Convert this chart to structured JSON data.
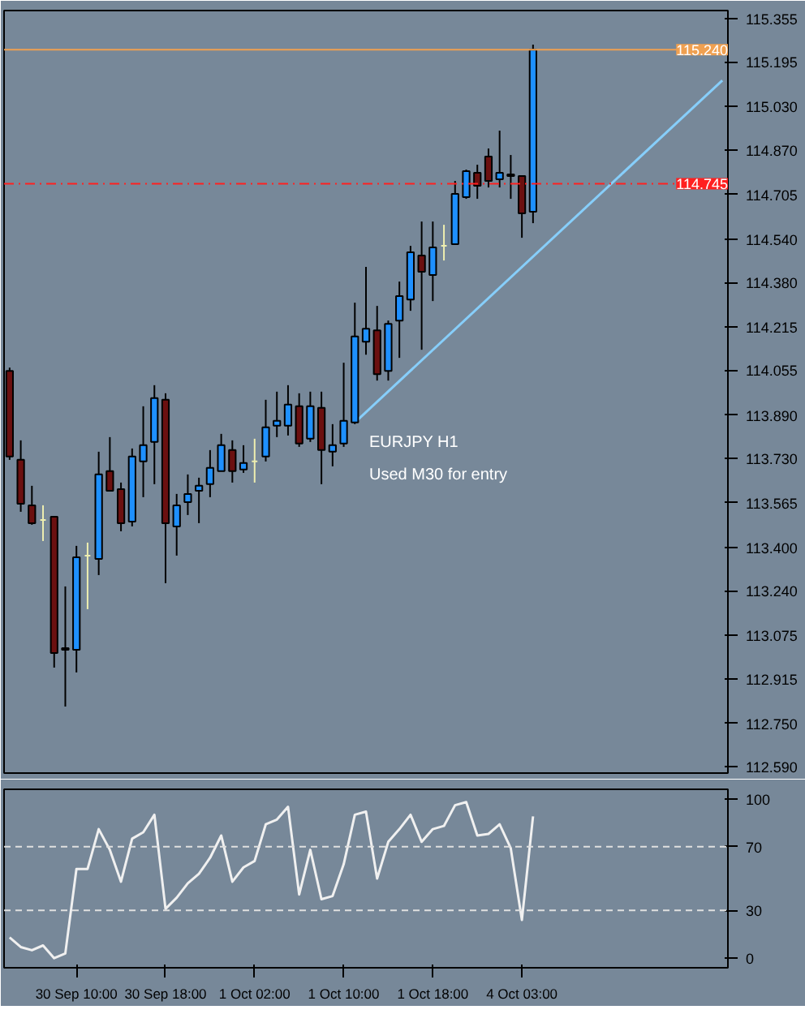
{
  "chart_data": [
    {
      "type": "candlestick",
      "tick_labels": "y",
      "grid": false,
      "categories": [
        null,
        null,
        null,
        null,
        null,
        null,
        null,
        null,
        null,
        null,
        null,
        null,
        null,
        null,
        null,
        null,
        null,
        null,
        null,
        null,
        null,
        null,
        null,
        null,
        null,
        null,
        null,
        null,
        null,
        null,
        null,
        null,
        null,
        null,
        null,
        null,
        null,
        null,
        null,
        null,
        null,
        null,
        null,
        null,
        null,
        null,
        null,
        null,
        null,
        null,
        null,
        null,
        null,
        null,
        null,
        null,
        null,
        null,
        null,
        null,
        null,
        null,
        null,
        null,
        null
      ],
      "ohlc": [
        [
          114.053,
          114.065,
          113.724,
          113.736
        ],
        [
          113.724,
          113.796,
          113.532,
          113.562
        ],
        [
          113.556,
          113.628,
          113.484,
          113.49
        ],
        [
          113.502,
          113.556,
          113.424,
          113.502
        ],
        [
          113.514,
          113.514,
          112.956,
          113.01
        ],
        [
          113.022,
          113.256,
          112.812,
          113.028
        ],
        [
          113.022,
          113.406,
          112.938,
          113.364
        ],
        [
          113.37,
          113.418,
          113.172,
          113.37
        ],
        [
          113.358,
          113.754,
          113.298,
          113.67
        ],
        [
          113.682,
          113.808,
          113.61,
          113.61
        ],
        [
          113.616,
          113.64,
          113.46,
          113.49
        ],
        [
          113.496,
          113.766,
          113.478,
          113.736
        ],
        [
          113.718,
          113.922,
          113.586,
          113.778
        ],
        [
          113.79,
          114.0,
          113.634,
          113.952
        ],
        [
          113.946,
          113.97,
          113.268,
          113.49
        ],
        [
          113.478,
          113.598,
          113.37,
          113.556
        ],
        [
          113.568,
          113.67,
          113.52,
          113.598
        ],
        [
          113.61,
          113.658,
          113.49,
          113.628
        ],
        [
          113.634,
          113.76,
          113.586,
          113.694
        ],
        [
          113.682,
          113.82,
          113.682,
          113.778
        ],
        [
          113.76,
          113.796,
          113.64,
          113.682
        ],
        [
          113.688,
          113.778,
          113.676,
          113.712
        ],
        [
          113.718,
          113.802,
          113.64,
          113.718
        ],
        [
          113.736,
          113.946,
          113.718,
          113.844
        ],
        [
          113.85,
          113.976,
          113.808,
          113.868
        ],
        [
          113.85,
          114.0,
          113.814,
          113.928
        ],
        [
          113.922,
          113.97,
          113.772,
          113.784
        ],
        [
          113.802,
          113.976,
          113.79,
          113.922
        ],
        [
          113.916,
          113.976,
          113.634,
          113.76
        ],
        [
          113.754,
          113.856,
          113.7,
          113.778
        ],
        [
          113.784,
          114.083,
          113.772,
          113.868
        ],
        [
          113.862,
          114.305,
          113.856,
          114.18
        ],
        [
          114.161,
          114.437,
          114.113,
          114.209
        ],
        [
          114.203,
          114.293,
          114.017,
          114.041
        ],
        [
          114.053,
          114.239,
          114.017,
          114.227
        ],
        [
          114.239,
          114.383,
          114.101,
          114.329
        ],
        [
          114.317,
          114.515,
          114.275,
          114.491
        ],
        [
          114.479,
          114.605,
          114.131,
          114.419
        ],
        [
          114.407,
          114.605,
          114.311,
          114.509
        ],
        [
          114.515,
          114.593,
          114.461,
          114.515
        ],
        [
          114.521,
          114.755,
          114.521,
          114.707
        ],
        [
          114.695,
          114.797,
          114.689,
          114.791
        ],
        [
          114.785,
          114.815,
          114.689,
          114.737
        ],
        [
          114.845,
          114.875,
          114.731,
          114.755
        ],
        [
          114.761,
          114.941,
          114.731,
          114.785
        ],
        [
          114.779,
          114.851,
          114.689,
          114.773
        ],
        [
          114.773,
          114.773,
          114.545,
          114.635
        ],
        [
          114.641,
          115.259,
          114.599,
          115.24
        ],
        null,
        null,
        null,
        null,
        null,
        null,
        null,
        null,
        null,
        null,
        null,
        null,
        null,
        null,
        null,
        null,
        null
      ],
      "colors": [
        "#6b1010",
        "#6b1010",
        "#6b1010",
        "#eeeeb0",
        "#6b1010",
        "#1e90ff",
        "#1e90ff",
        "#eeeeb0",
        "#1e90ff",
        "#6b1010",
        "#6b1010",
        "#1e90ff",
        "#1e90ff",
        "#1e90ff",
        "#6b1010",
        "#1e90ff",
        "#1e90ff",
        "#1e90ff",
        "#1e90ff",
        "#1e90ff",
        "#6b1010",
        "#1e90ff",
        "#eeeeb0",
        "#1e90ff",
        "#1e90ff",
        "#1e90ff",
        "#6b1010",
        "#1e90ff",
        "#6b1010",
        "#1e90ff",
        "#1e90ff",
        "#1e90ff",
        "#1e90ff",
        "#6b1010",
        "#1e90ff",
        "#1e90ff",
        "#1e90ff",
        "#6b1010",
        "#1e90ff",
        "#eeeeb0",
        "#1e90ff",
        "#1e90ff",
        "#6b1010",
        "#6b1010",
        "#1e90ff",
        "#6b1010",
        "#6b1010",
        "#1e90ff",
        null,
        null,
        null,
        null,
        null,
        null,
        null,
        null,
        null,
        null,
        null,
        null,
        null,
        null,
        null,
        null,
        null
      ],
      "series": [
        {
          "type": "line",
          "color": "#87cefa",
          "values": [
            null,
            null,
            null,
            null,
            null,
            null,
            null,
            null,
            null,
            null,
            null,
            null,
            null,
            null,
            null,
            null,
            null,
            null,
            null,
            null,
            null,
            null,
            null,
            null,
            null,
            null,
            null,
            null,
            null,
            null,
            null,
            113.862,
            null,
            null,
            null,
            null,
            null,
            null,
            null,
            null,
            null,
            null,
            null,
            null,
            null,
            null,
            null,
            null,
            null,
            null,
            null,
            null,
            null,
            null,
            null,
            null,
            null,
            null,
            null,
            null,
            null,
            null,
            null,
            null,
            115.127
          ]
        }
      ],
      "ylim": [
        112.566,
        115.385
      ],
      "yticks": [
        115.355,
        115.195,
        {
          "value": 115.03,
          "label": "115.030"
        },
        {
          "value": 114.87,
          "label": "114.870"
        },
        114.705,
        {
          "value": 114.54,
          "label": "114.540"
        },
        {
          "value": 114.38,
          "label": "114.380"
        },
        114.215,
        114.055,
        {
          "value": 113.89,
          "label": "113.890"
        },
        {
          "value": 113.73,
          "label": "113.730"
        },
        113.565,
        {
          "value": 113.4,
          "label": "113.400"
        },
        {
          "value": 113.24,
          "label": "113.240"
        },
        113.075,
        112.915,
        {
          "value": 112.75,
          "label": "112.750"
        },
        {
          "value": 112.59,
          "label": "112.590"
        }
      ],
      "ref_lines": [
        {
          "axis": "y",
          "value": 115.24,
          "label": "115.240",
          "color": "#f0a050",
          "line_style": "solid"
        },
        {
          "axis": "y",
          "value": 114.745,
          "label": "114.745",
          "color": "#ff2020",
          "line_style": "dashdot"
        }
      ],
      "annotations": [
        "EURJPY H1",
        "Used M30 for entry"
      ]
    },
    {
      "type": "line",
      "grid": false,
      "marker": "none",
      "line_style": "solid",
      "categories": [
        null,
        null,
        null,
        null,
        null,
        null,
        "30 Sep 10:00",
        null,
        null,
        null,
        null,
        null,
        null,
        null,
        "30 Sep 18:00",
        null,
        null,
        null,
        null,
        null,
        null,
        null,
        "1 Oct 02:00",
        null,
        null,
        null,
        null,
        null,
        null,
        null,
        "1 Oct 10:00",
        null,
        null,
        null,
        null,
        null,
        null,
        null,
        "1 Oct 18:00",
        null,
        null,
        null,
        null,
        null,
        null,
        null,
        "4 Oct 03:00",
        null,
        null,
        null,
        null,
        null,
        null,
        null,
        null,
        null,
        null,
        null,
        null,
        null,
        null,
        null,
        null,
        null,
        null
      ],
      "series": [
        {
          "color": "#f0f0f0",
          "values": [
            13,
            7,
            5,
            8,
            0,
            3,
            56,
            56,
            81,
            68,
            48,
            75,
            79,
            90,
            31,
            38,
            47,
            53,
            63,
            77,
            48,
            57,
            61,
            84,
            87,
            95,
            40,
            68,
            37,
            39,
            59,
            90,
            92,
            50,
            73,
            81,
            90,
            73,
            81,
            83,
            96,
            98,
            77,
            78,
            84,
            69,
            24,
            89,
            null,
            null,
            null,
            null,
            null,
            null,
            null,
            null,
            null,
            null,
            null,
            null,
            null,
            null,
            null,
            null,
            null
          ]
        }
      ],
      "ylim": [
        -6,
        106
      ],
      "yticks": [
        0,
        30,
        70,
        100
      ],
      "ref_lines": [
        {
          "axis": "y",
          "value": 70,
          "color": "#e0e0e0",
          "line_style": "dashed"
        },
        {
          "axis": "y",
          "value": 30,
          "color": "#e0e0e0",
          "line_style": "dashed"
        }
      ]
    }
  ]
}
